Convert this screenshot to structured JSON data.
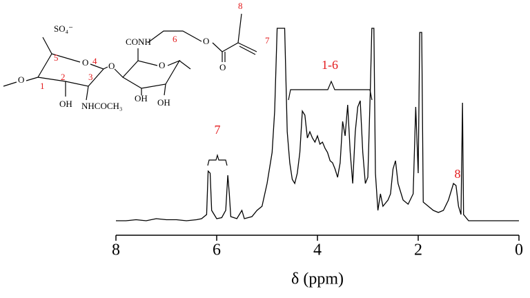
{
  "chart_data": {
    "type": "line",
    "xlabel": "δ (ppm)",
    "color": "#000000",
    "xlim": [
      8,
      0
    ],
    "xticks": [
      8,
      6,
      4,
      2,
      0
    ],
    "ylim": [
      0,
      100
    ],
    "x": [
      8.0,
      7.8,
      7.6,
      7.4,
      7.2,
      7.0,
      6.8,
      6.6,
      6.4,
      6.3,
      6.2,
      6.17,
      6.13,
      6.1,
      6.0,
      5.9,
      5.82,
      5.78,
      5.75,
      5.72,
      5.6,
      5.5,
      5.45,
      5.3,
      5.2,
      5.1,
      5.0,
      4.9,
      4.85,
      4.8,
      4.75,
      4.7,
      4.65,
      4.6,
      4.55,
      4.5,
      4.45,
      4.4,
      4.35,
      4.3,
      4.25,
      4.2,
      4.15,
      4.1,
      4.05,
      4.0,
      3.95,
      3.9,
      3.85,
      3.8,
      3.75,
      3.7,
      3.65,
      3.6,
      3.55,
      3.5,
      3.45,
      3.4,
      3.35,
      3.3,
      3.25,
      3.2,
      3.15,
      3.1,
      3.05,
      3.0,
      2.95,
      2.92,
      2.88,
      2.85,
      2.8,
      2.75,
      2.7,
      2.6,
      2.55,
      2.5,
      2.45,
      2.4,
      2.3,
      2.2,
      2.1,
      2.05,
      2.0,
      1.97,
      1.93,
      1.9,
      1.8,
      1.7,
      1.6,
      1.5,
      1.4,
      1.3,
      1.25,
      1.2,
      1.15,
      1.12,
      1.1,
      1.0,
      0.8,
      0.6,
      0.4,
      0.2,
      0.0
    ],
    "values": [
      7,
      7,
      7.5,
      7,
      8,
      7.5,
      7.5,
      7,
      7.5,
      8,
      10,
      31,
      30,
      12,
      8,
      8.5,
      12,
      29,
      20,
      9,
      8,
      12,
      8,
      9,
      12,
      14,
      25,
      40,
      60,
      100,
      100,
      100,
      100,
      50,
      35,
      27,
      25,
      30,
      40,
      60,
      58,
      47,
      50,
      47,
      45,
      48,
      44,
      45,
      42,
      40,
      36,
      35,
      32,
      28,
      35,
      55,
      48,
      63,
      40,
      25,
      50,
      62,
      65,
      40,
      25,
      28,
      70,
      100,
      100,
      30,
      12,
      20,
      14,
      17,
      20,
      32,
      36,
      25,
      17,
      15,
      20,
      62,
      30,
      98,
      98,
      16,
      14,
      12,
      11,
      12,
      17,
      25,
      24,
      14,
      10,
      64,
      10,
      7,
      7,
      7,
      7,
      7,
      7
    ],
    "annotations": [
      {
        "text": "7",
        "color": "#e31a1c"
      },
      {
        "text": "1-6",
        "color": "#e31a1c"
      },
      {
        "text": "8",
        "color": "#e31a1c"
      }
    ]
  },
  "structure": {
    "labels": [
      "SO₄⁻",
      "5",
      "O",
      "4",
      "O",
      "2",
      "3",
      "1",
      "O",
      "OH",
      "NHCOCH₃",
      "CONH",
      "6",
      "O",
      "O",
      "8",
      "7",
      "O",
      "OH",
      "OH"
    ]
  }
}
